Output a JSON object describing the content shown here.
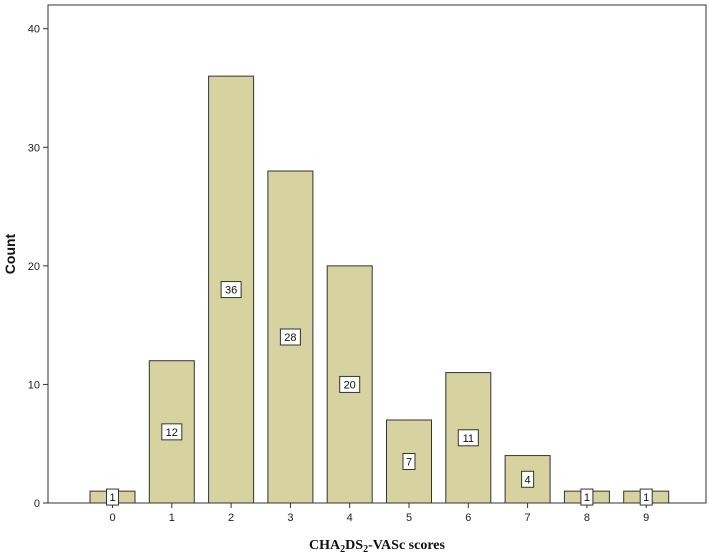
{
  "chart_data": {
    "type": "bar",
    "categories": [
      "0",
      "1",
      "2",
      "3",
      "4",
      "5",
      "6",
      "7",
      "8",
      "9"
    ],
    "values": [
      1,
      12,
      36,
      28,
      20,
      7,
      11,
      4,
      1,
      1
    ],
    "data_labels": [
      "1",
      "12",
      "36",
      "28",
      "20",
      "7",
      "11",
      "4",
      "1",
      "1"
    ],
    "xlabel_parts": [
      {
        "text": "CHA",
        "sub": false
      },
      {
        "text": "2",
        "sub": true
      },
      {
        "text": "DS",
        "sub": false
      },
      {
        "text": "2",
        "sub": true
      },
      {
        "text": "-VASc scores",
        "sub": false
      }
    ],
    "ylabel": "Count",
    "ylim": [
      0,
      42
    ],
    "yticks": [
      0,
      10,
      20,
      30,
      40
    ],
    "grid": false,
    "colors": {
      "bar_fill": "#d6d3a0",
      "bar_stroke": "#333333",
      "label_box_fill": "#ffffff",
      "label_box_stroke": "#333333"
    }
  }
}
